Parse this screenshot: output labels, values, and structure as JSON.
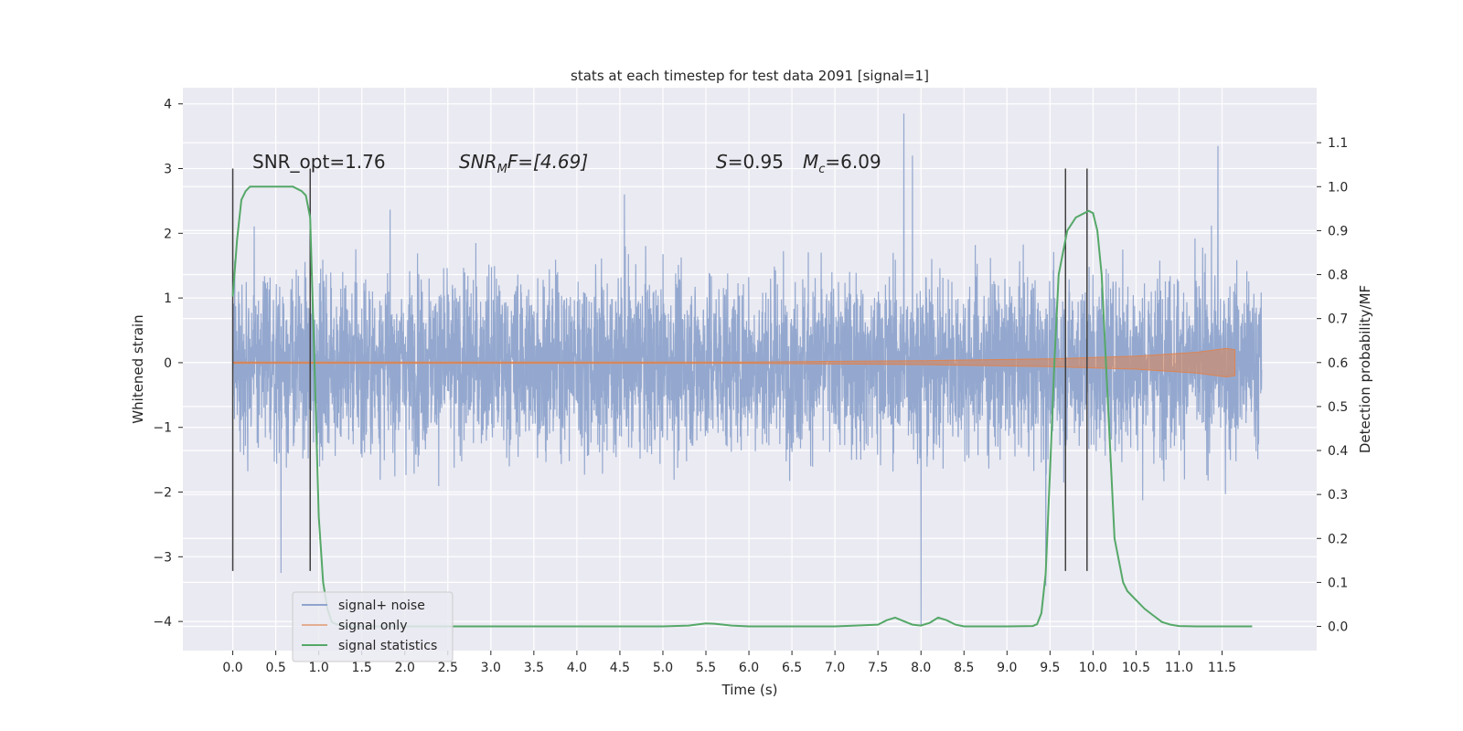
{
  "chart_data": {
    "type": "line",
    "title": "stats at each timestep for test data 2091 [signal=1]",
    "xlabel": "Time (s)",
    "ylabel": "Whitened strain",
    "y2label": "Detection probability/MF",
    "xlim": [
      -0.58,
      12.6
    ],
    "ylim": [
      -4.45,
      4.25
    ],
    "y2lim": [
      -0.055,
      1.225
    ],
    "x_ticks": [
      "0.0",
      "0.5",
      "1.0",
      "1.5",
      "2.0",
      "2.5",
      "3.0",
      "3.5",
      "4.0",
      "4.5",
      "5.0",
      "5.5",
      "6.0",
      "6.5",
      "7.0",
      "7.5",
      "8.0",
      "8.5",
      "9.0",
      "9.5",
      "10.0",
      "10.5",
      "11.0",
      "11.5"
    ],
    "y_ticks": [
      "4",
      "3",
      "2",
      "1",
      "0",
      "−1",
      "−2",
      "−3",
      "−4"
    ],
    "y2_ticks": [
      "1.1",
      "1.0",
      "0.9",
      "0.8",
      "0.7",
      "0.6",
      "0.5",
      "0.4",
      "0.3",
      "0.2",
      "0.1",
      "0.0"
    ],
    "grid": true,
    "legend_position": "lower-left",
    "annotations": {
      "snr_opt": "SNR_opt=1.76",
      "snr_mf_label": "SNR",
      "snr_mf_sub": "M",
      "snr_mf_rest": "F=[4.69]",
      "s_label": "S",
      "s_value": "=0.95",
      "mc_label": "M",
      "mc_sub": "c",
      "mc_value": "=6.09"
    },
    "series": [
      {
        "name": "signal+ noise",
        "color": "#8fa4cc",
        "description_range": [
          -2.6,
          2.6
        ],
        "peaks": [
          [
            0.56,
            -3.25
          ],
          [
            4.55,
            2.6
          ],
          [
            7.8,
            3.85
          ],
          [
            7.9,
            3.2
          ],
          [
            8.0,
            -4.05
          ],
          [
            9.45,
            -3.45
          ],
          [
            11.45,
            3.35
          ]
        ]
      },
      {
        "name": "signal only",
        "color": "#dd8452",
        "envelope": [
          [
            0.0,
            0.01
          ],
          [
            6.0,
            0.01
          ],
          [
            8.0,
            0.03
          ],
          [
            9.5,
            0.06
          ],
          [
            10.5,
            0.1
          ],
          [
            11.2,
            0.16
          ],
          [
            11.55,
            0.22
          ],
          [
            11.65,
            0.2
          ]
        ]
      },
      {
        "name": "signal statistics",
        "color": "#55a868",
        "axis": "right",
        "x": [
          0.0,
          0.05,
          0.1,
          0.15,
          0.2,
          0.3,
          0.4,
          0.5,
          0.6,
          0.7,
          0.8,
          0.85,
          0.9,
          0.95,
          1.0,
          1.05,
          1.1,
          1.15,
          1.2,
          1.3,
          1.5,
          2.0,
          2.5,
          3.0,
          3.5,
          4.0,
          4.5,
          5.0,
          5.3,
          5.5,
          5.6,
          5.8,
          6.0,
          6.5,
          7.0,
          7.5,
          7.6,
          7.7,
          7.8,
          7.9,
          8.0,
          8.1,
          8.2,
          8.3,
          8.4,
          8.5,
          8.7,
          9.0,
          9.3,
          9.35,
          9.4,
          9.45,
          9.5,
          9.55,
          9.6,
          9.7,
          9.8,
          9.9,
          9.95,
          10.0,
          10.05,
          10.1,
          10.15,
          10.2,
          10.25,
          10.3,
          10.35,
          10.4,
          10.5,
          10.6,
          10.7,
          10.8,
          10.9,
          11.0,
          11.2,
          11.5,
          11.7,
          11.85
        ],
        "values": [
          0.75,
          0.88,
          0.97,
          0.99,
          1.0,
          1.0,
          1.0,
          1.0,
          1.0,
          1.0,
          0.99,
          0.98,
          0.93,
          0.6,
          0.25,
          0.1,
          0.04,
          0.01,
          0.005,
          0.0,
          0.0,
          0.0,
          0.0,
          0.0,
          0.0,
          0.0,
          0.0,
          0.0,
          0.002,
          0.007,
          0.006,
          0.002,
          0.0,
          0.0,
          0.0,
          0.004,
          0.014,
          0.02,
          0.012,
          0.004,
          0.002,
          0.008,
          0.02,
          0.014,
          0.004,
          0.0,
          0.0,
          0.0,
          0.001,
          0.005,
          0.03,
          0.12,
          0.35,
          0.6,
          0.8,
          0.9,
          0.93,
          0.94,
          0.945,
          0.94,
          0.9,
          0.8,
          0.6,
          0.4,
          0.2,
          0.15,
          0.1,
          0.08,
          0.06,
          0.04,
          0.025,
          0.01,
          0.004,
          0.001,
          0.0,
          0.0,
          0.0,
          0.0
        ]
      }
    ],
    "vertical_markers": {
      "color": "#404040",
      "x": [
        0.0,
        0.9,
        9.68,
        9.93
      ],
      "y_from": -3.22,
      "y_to": 3.0
    }
  }
}
